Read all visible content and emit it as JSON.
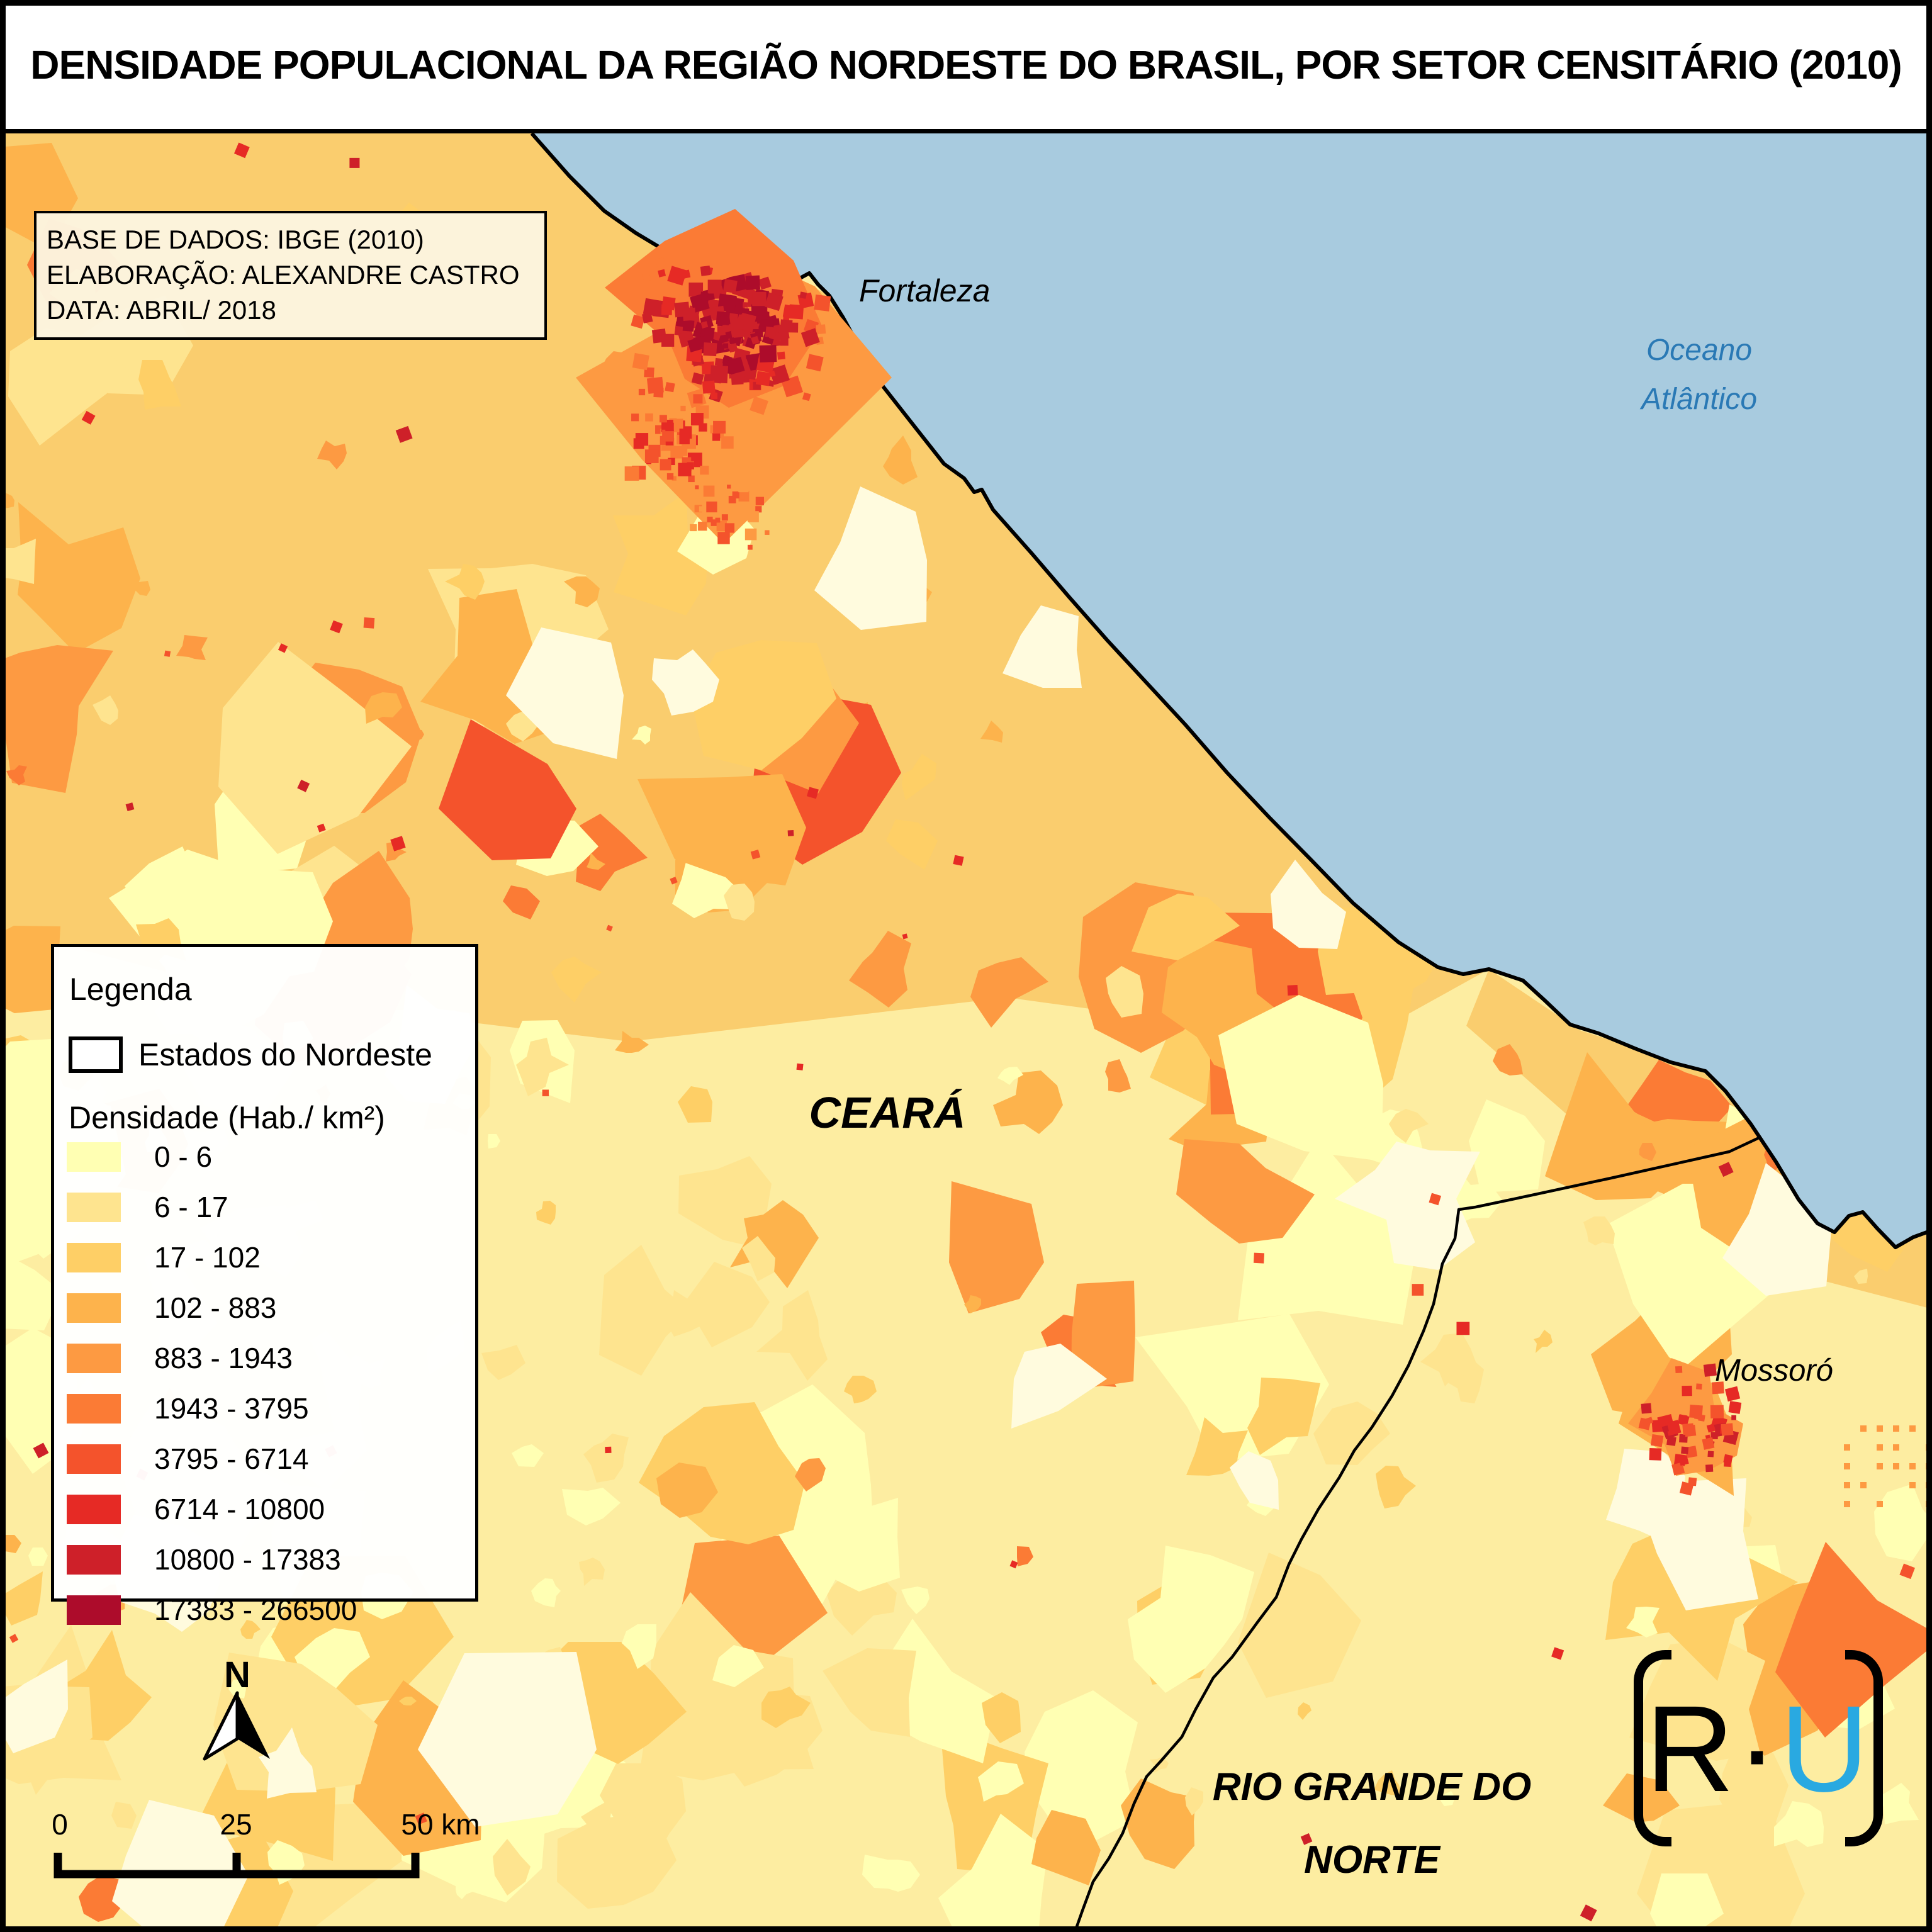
{
  "title": "DENSIDADE POPULACIONAL DA REGIÃO NORDESTE DO BRASIL, POR SETOR CENSITÁRIO (2010)",
  "info_box": {
    "line1": "BASE DE DADOS: IBGE (2010)",
    "line2": "ELABORAÇÃO: ALEXANDRE CASTRO",
    "line3": "DATA: ABRIL/ 2018"
  },
  "legend": {
    "heading": "Legenda",
    "states_label": "Estados do Nordeste",
    "density_heading": "Densidade (Hab./ km²)",
    "classes": [
      {
        "range": "0 - 6",
        "color": "#FFFFB3"
      },
      {
        "range": "6 - 17",
        "color": "#FEE48F"
      },
      {
        "range": "17 - 102",
        "color": "#FECF66"
      },
      {
        "range": "102 - 883",
        "color": "#FDB34C"
      },
      {
        "range": "883 - 1943",
        "color": "#FD9A42"
      },
      {
        "range": "1943 - 3795",
        "color": "#FB7B35"
      },
      {
        "range": "3795 - 6714",
        "color": "#F4532C"
      },
      {
        "range": "6714 - 10800",
        "color": "#E62A25"
      },
      {
        "range": "10800 - 17383",
        "color": "#CE2029"
      },
      {
        "range": "17383 - 266500",
        "color": "#AD0C2B"
      }
    ]
  },
  "map_labels": {
    "fortaleza": "Fortaleza",
    "ocean_line1": "Oceano",
    "ocean_line2": "Atlântico",
    "state_ceara": "CEARÁ",
    "mossoro": "Mossoró",
    "state_rgn_line1": "RIO GRANDE DO",
    "state_rgn_line2": "NORTE"
  },
  "north_arrow": {
    "label": "N"
  },
  "scale_bar": {
    "label_0": "0",
    "label_25": "25",
    "label_50": "50 km"
  },
  "logo": {
    "r": "R",
    "dot": "·",
    "u": "U"
  },
  "colors": {
    "ocean": "#A8CBDF",
    "ocean_label": "#2A79B5",
    "land_base": "#FDEDA1",
    "land_north": "#FACD6E",
    "pale_patch": "#FFFBDE",
    "coastline": "#000000",
    "state_boundary": "#000000",
    "logo_r": "#000000",
    "logo_u": "#29A9E1"
  }
}
